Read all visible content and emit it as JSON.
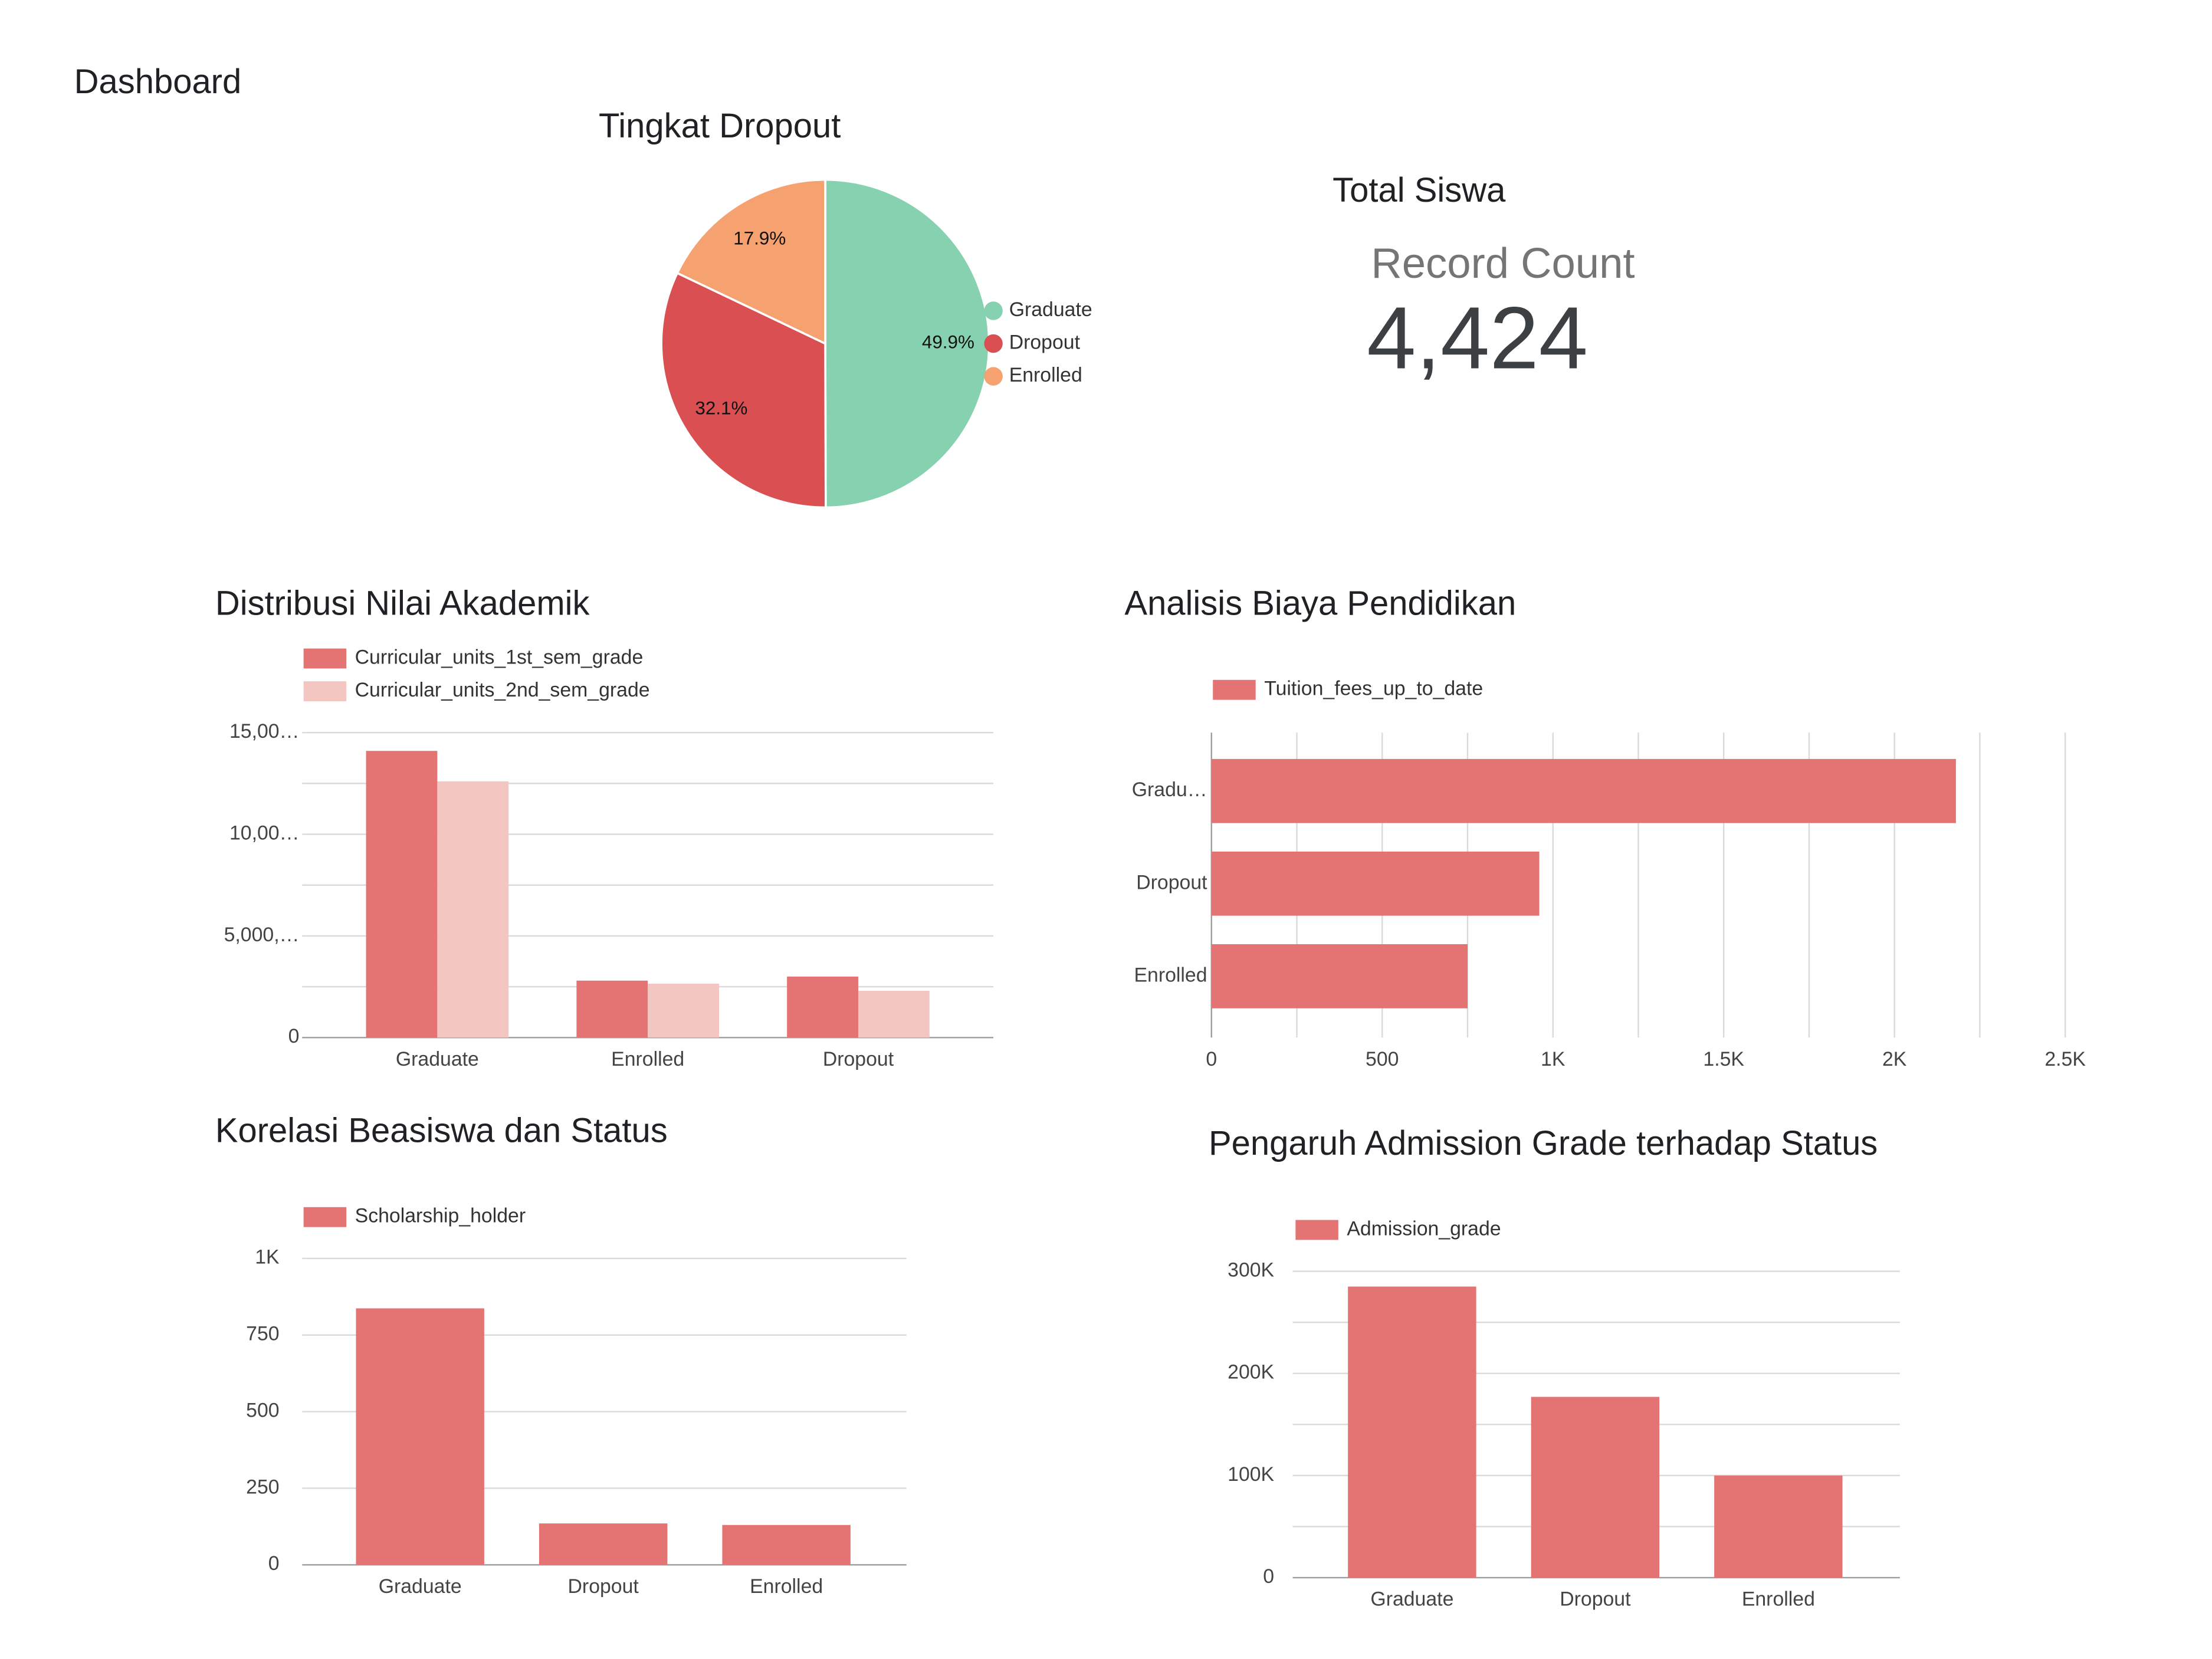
{
  "header": {
    "title": "Dashboard"
  },
  "scorecard": {
    "title": "Total Siswa",
    "label": "Record Count",
    "value": "4,424"
  },
  "chart_data": [
    {
      "type": "pie",
      "title": "Tingkat Dropout",
      "categories": [
        "Graduate",
        "Dropout",
        "Enrolled"
      ],
      "values": [
        49.9,
        32.1,
        17.9
      ],
      "value_labels": [
        "49.9%",
        "32.1%",
        "17.9%"
      ],
      "colors": [
        "#86d1b0",
        "#d94f52",
        "#f5a170"
      ]
    },
    {
      "type": "bar",
      "title": "Distribusi Nilai Akademik",
      "categories": [
        "Graduate",
        "Enrolled",
        "Dropout"
      ],
      "series": [
        {
          "name": "Curricular_units_1st_sem_grade",
          "color": "#e47474",
          "values": [
            14100,
            2800,
            3000
          ]
        },
        {
          "name": "Curricular_units_2nd_sem_grade",
          "color": "#f3c6c2",
          "values": [
            12600,
            2650,
            2300
          ]
        }
      ],
      "ylim": [
        0,
        15000
      ],
      "yticks": [
        0,
        {
          "value": 5000,
          "label": "5,000,…"
        },
        {
          "value": 10000,
          "label": "10,00…"
        },
        {
          "value": 15000,
          "label": "15,00…"
        }
      ],
      "minor_yticks": [
        2500,
        7500,
        12500
      ],
      "grid": true
    },
    {
      "type": "bar",
      "orientation": "horizontal",
      "title": "Analisis Biaya Pendidikan",
      "categories": [
        "Gradu…",
        "Dropout",
        "Enrolled"
      ],
      "series": [
        {
          "name": "Tuition_fees_up_to_date",
          "color": "#e47474",
          "values": [
            2180,
            960,
            750
          ]
        }
      ],
      "xlim": [
        0,
        2500
      ],
      "xticks": [
        0,
        500,
        {
          "value": 1000,
          "label": "1K"
        },
        {
          "value": 1500,
          "label": "1.5K"
        },
        {
          "value": 2000,
          "label": "2K"
        },
        {
          "value": 2500,
          "label": "2.5K"
        }
      ],
      "minor_xticks": [
        250,
        750,
        1250,
        1750,
        2250
      ],
      "grid": true
    },
    {
      "type": "bar",
      "title": "Korelasi Beasiswa dan Status",
      "categories": [
        "Graduate",
        "Dropout",
        "Enrolled"
      ],
      "series": [
        {
          "name": "Scholarship_holder",
          "color": "#e47474",
          "values": [
            837,
            135,
            130
          ]
        }
      ],
      "ylim": [
        0,
        1000
      ],
      "yticks": [
        0,
        250,
        500,
        750,
        {
          "value": 1000,
          "label": "1K"
        }
      ],
      "grid": true
    },
    {
      "type": "bar",
      "title": "Pengaruh Admission Grade terhadap Status",
      "categories": [
        "Graduate",
        "Dropout",
        "Enrolled"
      ],
      "series": [
        {
          "name": "Admission_grade",
          "color": "#e47474",
          "values": [
            285000,
            177000,
            100000
          ]
        }
      ],
      "ylim": [
        0,
        300000
      ],
      "yticks": [
        0,
        {
          "value": 100000,
          "label": "100K"
        },
        {
          "value": 200000,
          "label": "200K"
        },
        {
          "value": 300000,
          "label": "300K"
        }
      ],
      "minor_yticks": [
        50000,
        150000,
        250000
      ],
      "grid": true
    }
  ]
}
